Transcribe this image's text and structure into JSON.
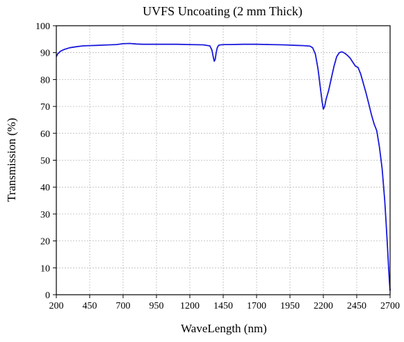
{
  "chart_data": {
    "type": "line",
    "title": "UVFS Uncoating (2 mm Thick)",
    "xlabel": "WaveLength (nm)",
    "ylabel": "Transmission (%)",
    "xlim": [
      200,
      2700
    ],
    "ylim": [
      0,
      100
    ],
    "x_ticks": [
      200,
      450,
      700,
      950,
      1200,
      1450,
      1700,
      1950,
      2200,
      2450,
      2700
    ],
    "y_ticks": [
      0,
      10,
      20,
      30,
      40,
      50,
      60,
      70,
      80,
      90,
      100
    ],
    "grid": true,
    "line_color": "#1a1adc",
    "series": [
      {
        "x": [
          200,
          210,
          230,
          260,
          300,
          350,
          400,
          450,
          500,
          550,
          600,
          650,
          700,
          750,
          800,
          850,
          900,
          950,
          1000,
          1100,
          1200,
          1300,
          1350,
          1365,
          1375,
          1383,
          1390,
          1397,
          1405,
          1415,
          1430,
          1460,
          1500,
          1600,
          1700,
          1800,
          1900,
          1950,
          2000,
          2050,
          2100,
          2120,
          2140,
          2160,
          2175,
          2190,
          2200,
          2210,
          2220,
          2240,
          2260,
          2280,
          2300,
          2320,
          2340,
          2360,
          2380,
          2400,
          2420,
          2440,
          2460,
          2480,
          2500,
          2520,
          2540,
          2560,
          2580,
          2600,
          2620,
          2640,
          2660,
          2670,
          2680,
          2690,
          2695,
          2700
        ],
        "y": [
          88.5,
          89.5,
          90.5,
          91.2,
          91.8,
          92.2,
          92.5,
          92.6,
          92.7,
          92.8,
          92.9,
          93.0,
          93.3,
          93.4,
          93.2,
          93.1,
          93.1,
          93.1,
          93.1,
          93.1,
          93.0,
          92.9,
          92.5,
          91.0,
          88.5,
          86.8,
          87.5,
          89.8,
          91.8,
          92.7,
          92.9,
          93.0,
          93.0,
          93.1,
          93.1,
          93.0,
          92.9,
          92.8,
          92.7,
          92.6,
          92.4,
          91.8,
          89.5,
          84.0,
          78.0,
          72.0,
          69.0,
          70.0,
          72.5,
          76.0,
          80.5,
          85.0,
          88.5,
          90.0,
          90.3,
          89.8,
          89.0,
          88.0,
          86.5,
          85.0,
          84.5,
          82.0,
          78.5,
          75.0,
          71.0,
          67.0,
          63.5,
          61.0,
          55.0,
          47.0,
          35.0,
          27.0,
          18.0,
          9.0,
          5.0,
          1.5
        ]
      }
    ]
  }
}
